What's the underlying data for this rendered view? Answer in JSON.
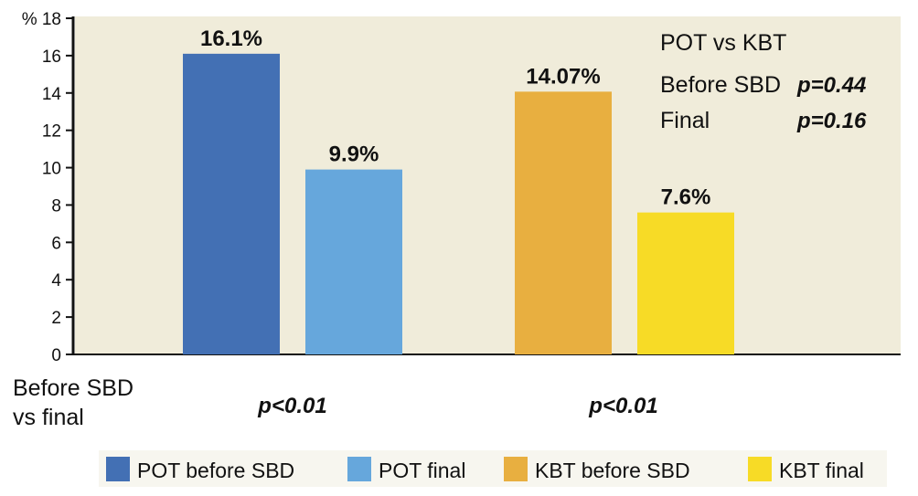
{
  "chart_data": {
    "type": "bar",
    "y_unit_label": "%",
    "ylim": [
      0,
      18
    ],
    "yticks": [
      0,
      2,
      4,
      6,
      8,
      10,
      12,
      14,
      16,
      18
    ],
    "grid": false,
    "series": [
      {
        "name": "POT before SBD",
        "value": 16.1,
        "label": "16.1%",
        "color": "#4370b4"
      },
      {
        "name": "POT final",
        "value": 9.9,
        "label": "9.9%",
        "color": "#66a7dc"
      },
      {
        "name": "KBT before SBD",
        "value": 14.07,
        "label": "14.07%",
        "color": "#e8af40"
      },
      {
        "name": "KBT final",
        "value": 7.6,
        "label": "7.6%",
        "color": "#f7db26"
      }
    ],
    "comparison_row": {
      "label_line1": "Before SBD",
      "label_line2": "vs final",
      "pot_p": "p<0.01",
      "kbt_p": "p<0.01"
    },
    "annotation": {
      "title": "POT vs KBT",
      "row1_label": "Before SBD",
      "row1_p": "p=0.44",
      "row2_label": "Final",
      "row2_p": "p=0.16"
    },
    "legend_position": "bottom",
    "plot_background": "#f0ecda"
  }
}
